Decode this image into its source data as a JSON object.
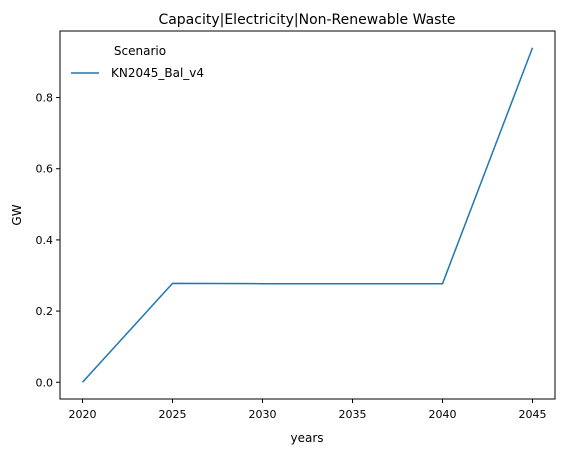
{
  "chart_data": {
    "type": "line",
    "title": "Capacity|Electricity|Non-Renewable Waste",
    "xlabel": "years",
    "ylabel": "GW",
    "x": [
      2020,
      2025,
      2030,
      2035,
      2040,
      2045
    ],
    "xlim": [
      2018.75,
      2046.25
    ],
    "ylim": [
      -0.047,
      0.987
    ],
    "xticks": [
      2020,
      2025,
      2030,
      2035,
      2040,
      2045
    ],
    "xtick_labels": [
      "2020",
      "2025",
      "2030",
      "2035",
      "2040",
      "2045"
    ],
    "yticks": [
      0.0,
      0.2,
      0.4,
      0.6,
      0.8
    ],
    "ytick_labels": [
      "0.0",
      "0.2",
      "0.4",
      "0.6",
      "0.8"
    ],
    "grid": false,
    "legend": {
      "title": "Scenario",
      "placement": "top-left"
    },
    "series": [
      {
        "name": "KN2045_Bal_v4",
        "color": "#1f77b4",
        "values": [
          0.0,
          0.278,
          0.277,
          0.277,
          0.277,
          0.94
        ]
      }
    ]
  }
}
